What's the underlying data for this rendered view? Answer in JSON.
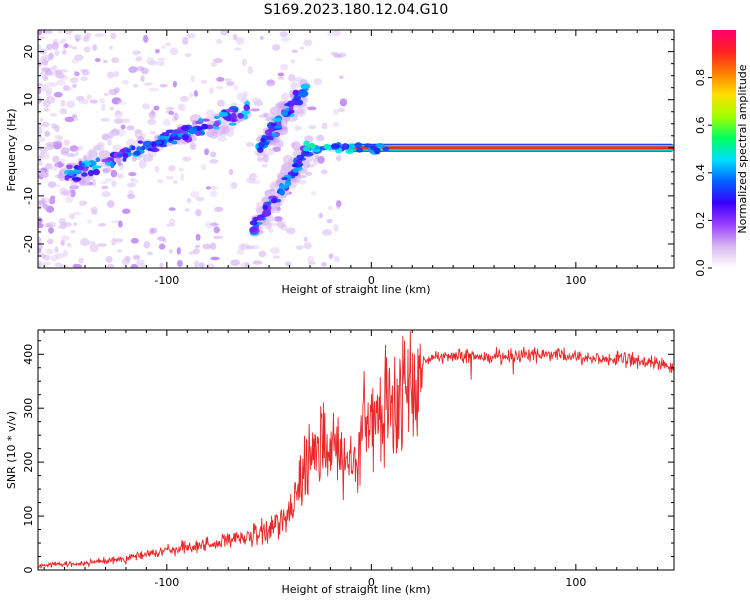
{
  "title": "S169.2023.180.12.04.G10",
  "colors": {
    "snr_line": "#e8282a",
    "colormap": [
      "#ffffff",
      "#d8b8f0",
      "#9a40ff",
      "#3a00ff",
      "#0060ff",
      "#00e0ff",
      "#00ff60",
      "#a0ff00",
      "#ffe000",
      "#ff8000",
      "#ff2020",
      "#ff0070"
    ]
  },
  "chart_data": [
    {
      "type": "heatmap",
      "xlabel": "Height of straight line (km)",
      "ylabel": "Frequency (Hz)",
      "xlim": [
        -163,
        148
      ],
      "ylim": [
        -25,
        24.5
      ],
      "xticks": [
        -100,
        0,
        100
      ],
      "yticks": [
        -20,
        -10,
        0,
        10,
        20
      ],
      "xtick_labels": [
        "-100",
        "0",
        "100"
      ],
      "ytick_labels": [
        "-20",
        "-10",
        "0",
        "10",
        "20"
      ],
      "colorbar": {
        "label": "Normalized spectral amplitude",
        "range": [
          0,
          1
        ],
        "ticks": [
          0.0,
          0.2,
          0.4,
          0.6,
          0.8
        ],
        "tick_labels": [
          "0.0",
          "0.2",
          "0.4",
          "0.6",
          "0.8"
        ]
      },
      "features": [
        {
          "name": "carrier",
          "x": [
            -12,
            148
          ],
          "frequency": 0,
          "amplitude": 0.9
        },
        {
          "name": "trend",
          "x": [
            -150,
            -60
          ],
          "frequency": [
            -6,
            8
          ],
          "amplitude": 0.3
        },
        {
          "name": "branch-upper",
          "x": [
            -55,
            -32
          ],
          "frequency": [
            0,
            12
          ],
          "amplitude": 0.3
        },
        {
          "name": "branch-lower",
          "x": [
            -58,
            -30
          ],
          "frequency": [
            -17,
            0
          ],
          "amplitude": 0.3
        }
      ]
    },
    {
      "type": "line",
      "xlabel": "Height of straight line (km)",
      "ylabel": "SNR (10 * v/v)",
      "xlim": [
        -163,
        148
      ],
      "ylim": [
        0,
        445
      ],
      "xticks": [
        -100,
        0,
        100
      ],
      "yticks": [
        0,
        100,
        200,
        300,
        400
      ],
      "xtick_labels": [
        "-100",
        "0",
        "100"
      ],
      "ytick_labels": [
        "0",
        "100",
        "200",
        "300",
        "400"
      ],
      "series": [
        {
          "x": [
            -163,
            -140,
            -120,
            -100,
            -80,
            -60,
            -50,
            -40,
            -35,
            -30,
            -25,
            -20,
            -15,
            -10,
            -5,
            0,
            5,
            10,
            15,
            20,
            25,
            30,
            50,
            80,
            100,
            120,
            140,
            148
          ],
          "y": [
            8,
            12,
            22,
            35,
            48,
            60,
            70,
            110,
            170,
            220,
            240,
            230,
            200,
            180,
            250,
            270,
            280,
            300,
            320,
            360,
            390,
            395,
            395,
            400,
            395,
            390,
            385,
            370
          ]
        }
      ]
    }
  ]
}
